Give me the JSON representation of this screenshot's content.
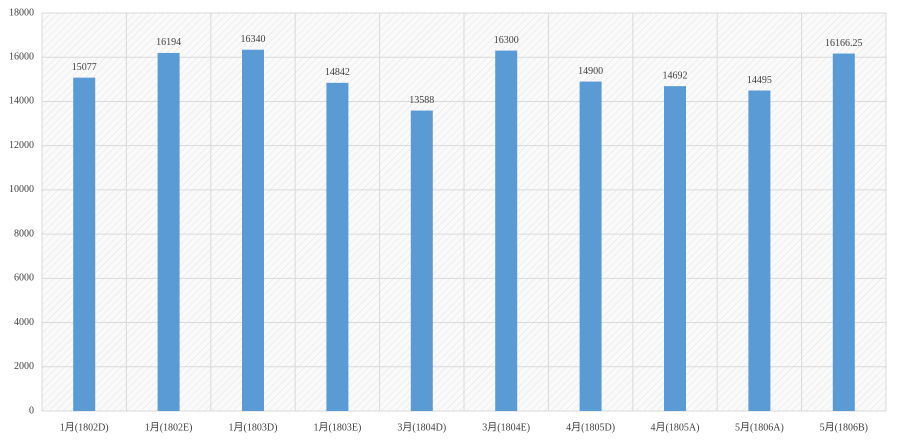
{
  "chart_data": {
    "type": "bar",
    "categories": [
      "1月(1802D)",
      "1月(1802E)",
      "1月(1803D)",
      "1月(1803E)",
      "3月(1804D)",
      "3月(1804E)",
      "4月(1805D)",
      "4月(1805A)",
      "5月(1806A)",
      "5月(1806B)"
    ],
    "values": [
      15077,
      16194,
      16340,
      14842,
      13588,
      16300,
      14900,
      14692,
      14495,
      16166.25
    ],
    "color": "#5b9bd5",
    "ylim": [
      0,
      18000
    ],
    "yticks": [
      0,
      2000,
      4000,
      6000,
      8000,
      10000,
      12000,
      14000,
      16000,
      18000
    ],
    "grid": true
  }
}
